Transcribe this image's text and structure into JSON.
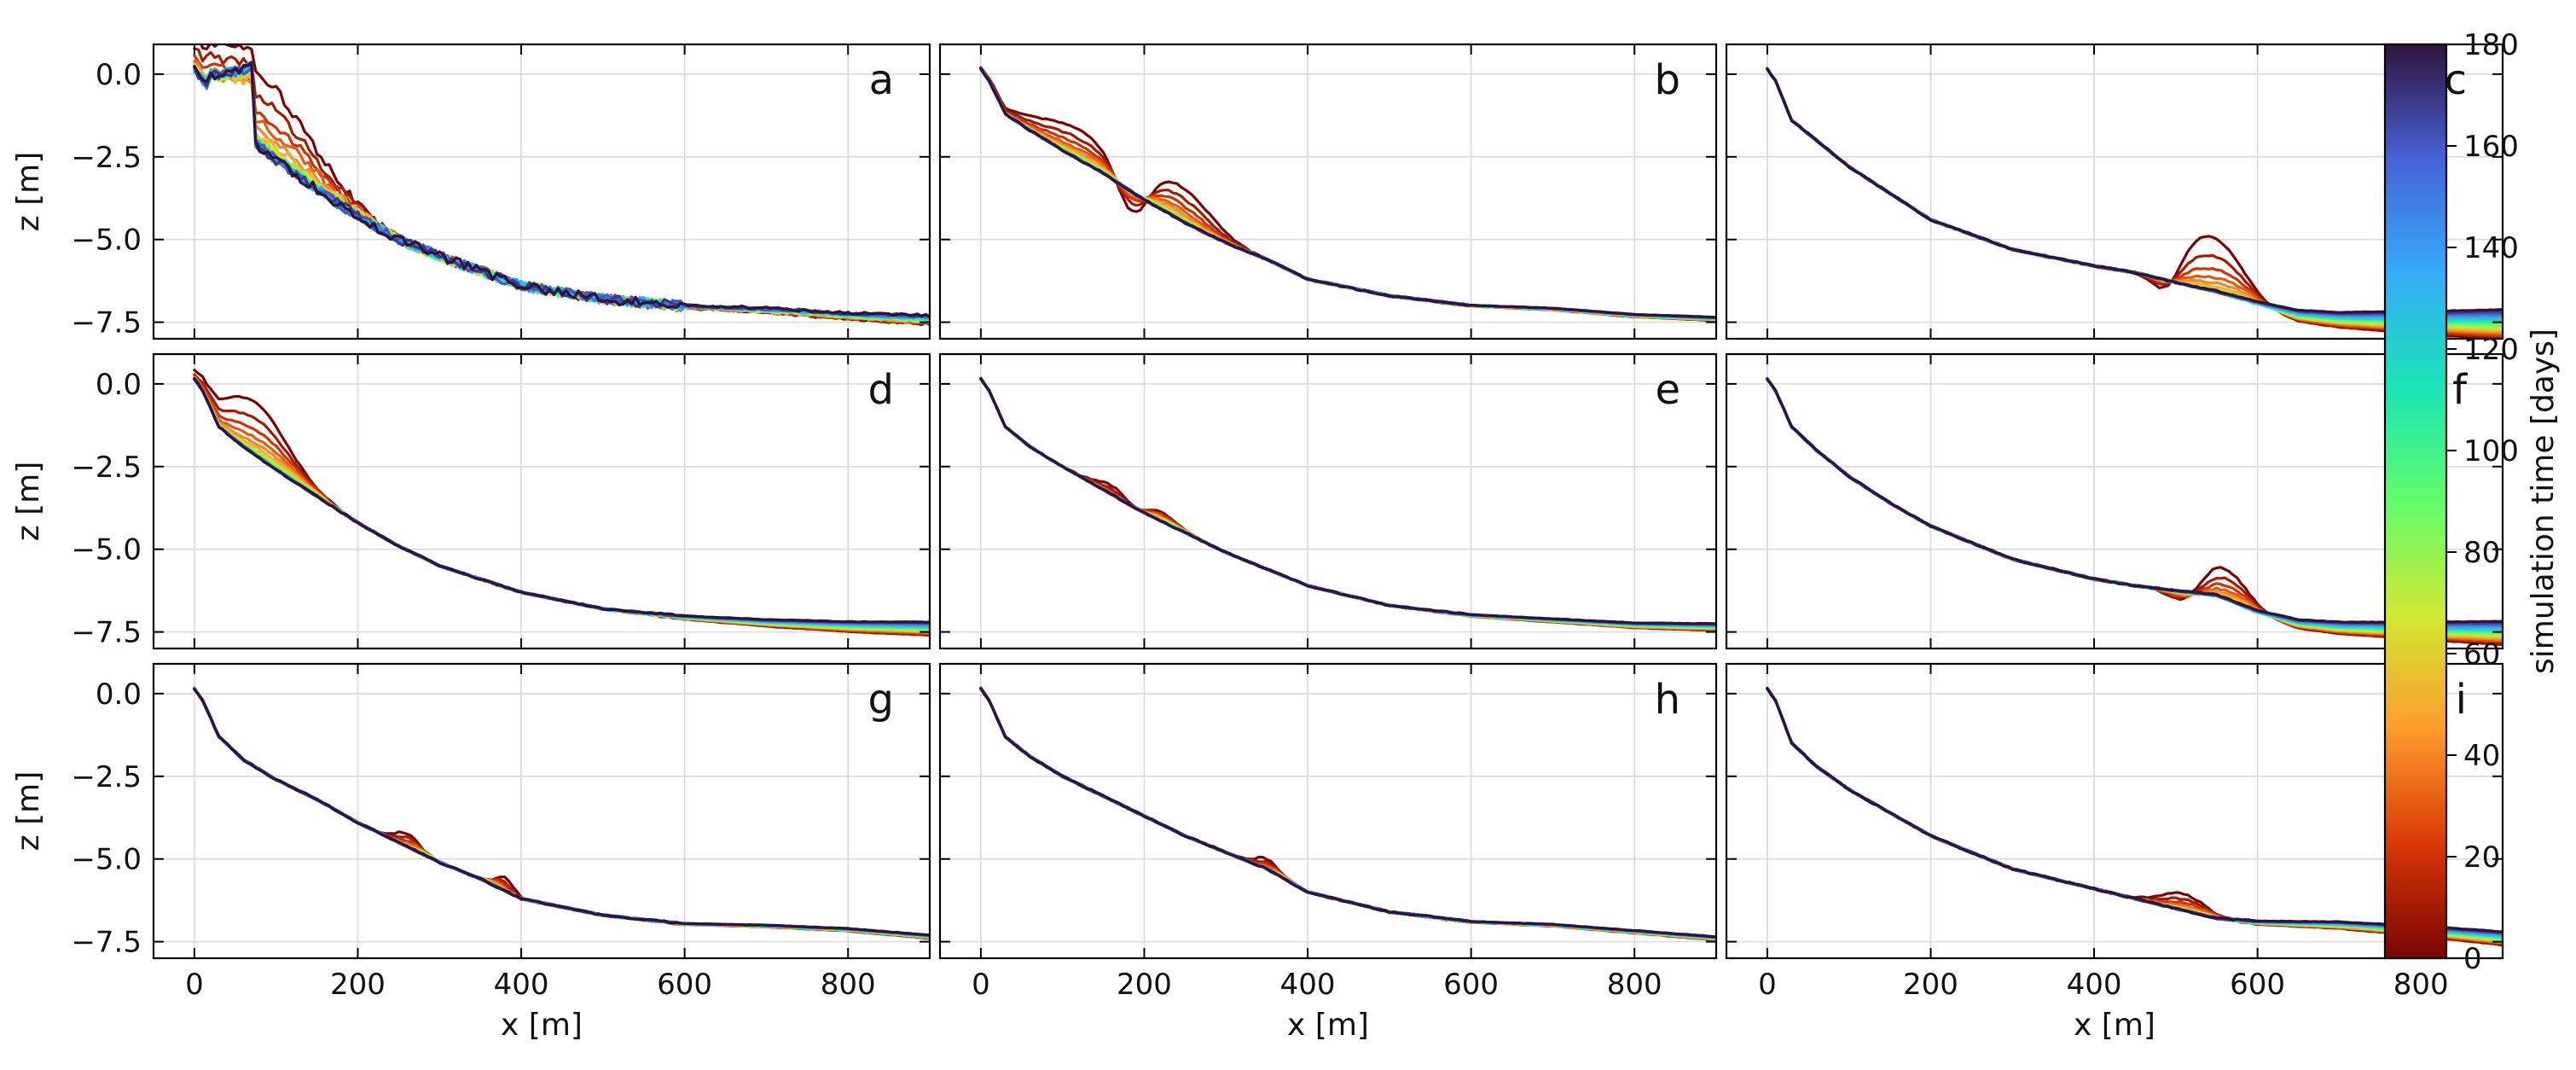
{
  "chart_data": {
    "type": "line",
    "layout": "3x3 grid of panels, shared axes",
    "xlabel": "x [m]",
    "ylabel": "z [m]",
    "xlim": [
      -50,
      900
    ],
    "ylim": [
      -8.0,
      0.9
    ],
    "xticks": [
      0,
      200,
      400,
      600,
      800
    ],
    "yticks": [
      0.0,
      -2.5,
      -5.0,
      -7.5
    ],
    "xtick_labels": [
      "0",
      "200",
      "400",
      "600",
      "800"
    ],
    "ytick_labels": [
      "0.0",
      "−2.5",
      "−5.0",
      "−7.5"
    ],
    "grid": true,
    "colorbar": {
      "label": "simulation time [days]",
      "range": [
        0,
        180
      ],
      "ticks": [
        0,
        20,
        40,
        60,
        80,
        100,
        120,
        140,
        160,
        180
      ],
      "tick_labels": [
        "0",
        "20",
        "40",
        "60",
        "80",
        "100",
        "120",
        "140",
        "160",
        "180"
      ],
      "colormap": "turbo (reversed)",
      "colors": [
        "#7a0403",
        "#d93806",
        "#fe9b2d",
        "#d1e834",
        "#62fc6b",
        "#1ae4b6",
        "#35abf8",
        "#4662d7",
        "#30123b"
      ]
    },
    "series_times_days": [
      0,
      10,
      20,
      30,
      40,
      50,
      60,
      70,
      80,
      90,
      100,
      110,
      120,
      130,
      140,
      150,
      160,
      170,
      180
    ],
    "panels": [
      {
        "label": "a",
        "profile": [
          [
            0,
            0.1
          ],
          [
            10,
            -0.3
          ],
          [
            30,
            -1.0
          ],
          [
            60,
            -1.8
          ],
          [
            100,
            -2.6
          ],
          [
            150,
            -3.5
          ],
          [
            200,
            -4.3
          ],
          [
            250,
            -5.0
          ],
          [
            300,
            -5.5
          ],
          [
            400,
            -6.4
          ],
          [
            500,
            -6.8
          ],
          [
            600,
            -7.0
          ],
          [
            700,
            -7.1
          ],
          [
            800,
            -7.25
          ],
          [
            900,
            -7.35
          ]
        ],
        "bars": [
          {
            "x": 100,
            "height": 2.2,
            "width": 90,
            "drift": 0
          }
        ],
        "step": {
          "x": 75,
          "height": 2.4
        },
        "noise": 0.3,
        "end_offsets": [
          -0.2,
          0.05
        ]
      },
      {
        "label": "b",
        "profile": [
          [
            0,
            0.15
          ],
          [
            10,
            -0.2
          ],
          [
            30,
            -1.2
          ],
          [
            60,
            -1.7
          ],
          [
            100,
            -2.3
          ],
          [
            150,
            -3.0
          ],
          [
            200,
            -3.8
          ],
          [
            250,
            -4.5
          ],
          [
            300,
            -5.1
          ],
          [
            350,
            -5.6
          ],
          [
            400,
            -6.2
          ],
          [
            500,
            -6.7
          ],
          [
            600,
            -7.0
          ],
          [
            700,
            -7.1
          ],
          [
            800,
            -7.3
          ],
          [
            900,
            -7.4
          ]
        ],
        "bars": [
          {
            "x": 140,
            "height": 0.9,
            "width": 70,
            "drift": 0
          },
          {
            "x": 225,
            "height": 1.0,
            "width": 50,
            "drift": 0
          }
        ],
        "trough": {
          "x": 185,
          "depth": 1.2
        },
        "noise": 0.05,
        "end_offsets": [
          -0.05,
          0.05
        ]
      },
      {
        "label": "c",
        "profile": [
          [
            0,
            0.15
          ],
          [
            10,
            -0.2
          ],
          [
            30,
            -1.4
          ],
          [
            60,
            -2.0
          ],
          [
            100,
            -2.8
          ],
          [
            150,
            -3.6
          ],
          [
            200,
            -4.4
          ],
          [
            300,
            -5.3
          ],
          [
            400,
            -5.8
          ],
          [
            450,
            -6.0
          ],
          [
            500,
            -6.3
          ],
          [
            550,
            -6.6
          ],
          [
            600,
            -6.95
          ],
          [
            650,
            -7.25
          ],
          [
            700,
            -7.35
          ],
          [
            800,
            -7.4
          ],
          [
            900,
            -7.42
          ]
        ],
        "bars": [
          {
            "x": 575,
            "height": 1.4,
            "width": 45,
            "drift": 0
          },
          {
            "x": 495,
            "height": 0.7,
            "width": 40,
            "drift": 0
          }
        ],
        "trough": {
          "x": 490,
          "depth": 0.8
        },
        "noise": 0.05,
        "end_offsets": [
          -0.6,
          0.3
        ]
      },
      {
        "label": "d",
        "profile": [
          [
            0,
            0.15
          ],
          [
            10,
            -0.2
          ],
          [
            30,
            -1.3
          ],
          [
            60,
            -1.9
          ],
          [
            100,
            -2.6
          ],
          [
            150,
            -3.4
          ],
          [
            200,
            -4.2
          ],
          [
            250,
            -4.9
          ],
          [
            300,
            -5.5
          ],
          [
            400,
            -6.3
          ],
          [
            500,
            -6.8
          ],
          [
            600,
            -7.05
          ],
          [
            700,
            -7.2
          ],
          [
            800,
            -7.3
          ],
          [
            900,
            -7.35
          ]
        ],
        "bars": [
          {
            "x": 95,
            "height": 1.6,
            "width": 55,
            "drift": 0
          }
        ],
        "noise": 0.05,
        "end_offsets": [
          -0.25,
          0.15
        ]
      },
      {
        "label": "e",
        "profile": [
          [
            0,
            0.15
          ],
          [
            10,
            -0.2
          ],
          [
            30,
            -1.3
          ],
          [
            60,
            -1.9
          ],
          [
            100,
            -2.5
          ],
          [
            150,
            -3.2
          ],
          [
            200,
            -3.9
          ],
          [
            250,
            -4.5
          ],
          [
            300,
            -5.1
          ],
          [
            350,
            -5.6
          ],
          [
            400,
            -6.1
          ],
          [
            500,
            -6.7
          ],
          [
            600,
            -7.0
          ],
          [
            700,
            -7.15
          ],
          [
            800,
            -7.3
          ],
          [
            900,
            -7.35
          ]
        ],
        "bars": [
          {
            "x": 210,
            "height": 0.8,
            "width": 40,
            "drift": 0
          }
        ],
        "trough": {
          "x": 190,
          "depth": 0.8
        },
        "noise": 0.04,
        "end_offsets": [
          -0.1,
          0.1
        ]
      },
      {
        "label": "f",
        "profile": [
          [
            0,
            0.15
          ],
          [
            10,
            -0.2
          ],
          [
            30,
            -1.3
          ],
          [
            60,
            -2.0
          ],
          [
            100,
            -2.8
          ],
          [
            150,
            -3.6
          ],
          [
            200,
            -4.3
          ],
          [
            300,
            -5.3
          ],
          [
            400,
            -5.9
          ],
          [
            450,
            -6.1
          ],
          [
            500,
            -6.25
          ],
          [
            550,
            -6.4
          ],
          [
            600,
            -6.9
          ],
          [
            650,
            -7.2
          ],
          [
            700,
            -7.3
          ],
          [
            800,
            -7.35
          ],
          [
            900,
            -7.38
          ]
        ],
        "bars": [
          {
            "x": 580,
            "height": 1.0,
            "width": 40,
            "drift": 0
          }
        ],
        "trough": {
          "x": 510,
          "depth": 0.4
        },
        "noise": 0.05,
        "end_offsets": [
          -0.5,
          0.2
        ]
      },
      {
        "label": "g",
        "profile": [
          [
            0,
            0.15
          ],
          [
            10,
            -0.2
          ],
          [
            30,
            -1.3
          ],
          [
            60,
            -2.0
          ],
          [
            100,
            -2.6
          ],
          [
            150,
            -3.2
          ],
          [
            200,
            -3.9
          ],
          [
            250,
            -4.5
          ],
          [
            300,
            -5.1
          ],
          [
            350,
            -5.6
          ],
          [
            400,
            -6.2
          ],
          [
            500,
            -6.7
          ],
          [
            600,
            -6.95
          ],
          [
            700,
            -7.0
          ],
          [
            800,
            -7.1
          ],
          [
            900,
            -7.3
          ]
        ],
        "bars": [
          {
            "x": 280,
            "height": 0.4,
            "width": 20,
            "drift": 0
          },
          {
            "x": 360,
            "height": 0.4,
            "width": 15,
            "drift": 0
          }
        ],
        "noise": 0.05,
        "end_offsets": [
          -0.1,
          0.0
        ]
      },
      {
        "label": "h",
        "profile": [
          [
            0,
            0.15
          ],
          [
            10,
            -0.2
          ],
          [
            30,
            -1.3
          ],
          [
            60,
            -1.9
          ],
          [
            100,
            -2.5
          ],
          [
            150,
            -3.1
          ],
          [
            200,
            -3.7
          ],
          [
            250,
            -4.3
          ],
          [
            300,
            -4.8
          ],
          [
            350,
            -5.3
          ],
          [
            400,
            -6.0
          ],
          [
            500,
            -6.6
          ],
          [
            600,
            -6.9
          ],
          [
            700,
            -7.0
          ],
          [
            800,
            -7.2
          ],
          [
            900,
            -7.4
          ]
        ],
        "bars": [
          {
            "x": 370,
            "height": 0.3,
            "width": 20,
            "drift": 0
          }
        ],
        "noise": 0.05,
        "end_offsets": [
          -0.05,
          0.05
        ]
      },
      {
        "label": "i",
        "profile": [
          [
            0,
            0.15
          ],
          [
            10,
            -0.2
          ],
          [
            30,
            -1.5
          ],
          [
            60,
            -2.2
          ],
          [
            100,
            -2.9
          ],
          [
            150,
            -3.6
          ],
          [
            200,
            -4.3
          ],
          [
            300,
            -5.3
          ],
          [
            400,
            -5.9
          ],
          [
            450,
            -6.2
          ],
          [
            500,
            -6.5
          ],
          [
            550,
            -6.8
          ],
          [
            600,
            -6.9
          ],
          [
            700,
            -6.95
          ],
          [
            800,
            -7.1
          ],
          [
            900,
            -7.3
          ]
        ],
        "bars": [
          {
            "x": 530,
            "height": 0.5,
            "width": 40,
            "drift": 0
          }
        ],
        "noise": 0.05,
        "end_offsets": [
          -0.3,
          0.1
        ]
      }
    ]
  }
}
